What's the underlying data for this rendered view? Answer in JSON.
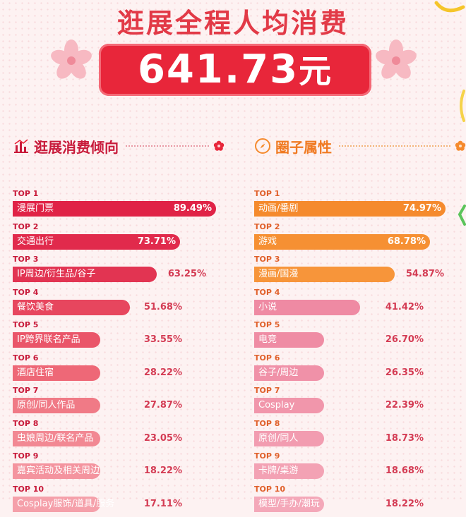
{
  "header": {
    "title": "逛展全程人均消费",
    "amount": "641.73",
    "unit": "元"
  },
  "chart_data": [
    {
      "type": "bar",
      "title": "逛展消费倾向",
      "categories": [
        "漫展门票",
        "交通出行",
        "IP周边/衍生品/谷子",
        "餐饮美食",
        "IP跨界联名产品",
        "酒店住宿",
        "原创/同人作品",
        "虫娘周边/联名产品",
        "嘉宾活动及相关周边",
        "Cosplay服饰/道具/服务"
      ],
      "values": [
        89.49,
        73.71,
        63.25,
        51.68,
        33.55,
        28.22,
        27.87,
        23.05,
        18.22,
        17.11
      ],
      "labels": [
        "89.49%",
        "73.71%",
        "63.25%",
        "51.68%",
        "33.55%",
        "28.22%",
        "27.87%",
        "23.05%",
        "18.22%",
        "17.11%"
      ],
      "ranks": [
        "TOP 1",
        "TOP 2",
        "TOP 3",
        "TOP 4",
        "TOP 5",
        "TOP 6",
        "TOP 7",
        "TOP 8",
        "TOP 9",
        "TOP 10"
      ],
      "unit": "%",
      "colors": [
        "#e02246",
        "#e12a4c",
        "#e23452",
        "#e7465e",
        "#ea5569",
        "#ee6877",
        "#f07a86",
        "#f28893",
        "#f4949f",
        "#f5a0aa"
      ]
    },
    {
      "type": "bar",
      "title": "圈子属性",
      "categories": [
        "动画/番剧",
        "游戏",
        "漫画/国漫",
        "小说",
        "电竞",
        "谷子/周边",
        "Cosplay",
        "原创/同人",
        "卡牌/桌游",
        "模型/手办/潮玩"
      ],
      "values": [
        74.97,
        68.78,
        54.87,
        41.42,
        26.7,
        26.35,
        22.39,
        18.73,
        18.68,
        18.22
      ],
      "labels": [
        "74.97%",
        "68.78%",
        "54.87%",
        "41.42%",
        "26.70%",
        "26.35%",
        "22.39%",
        "18.73%",
        "18.68%",
        "18.22%"
      ],
      "ranks": [
        "TOP 1",
        "TOP 2",
        "TOP 3",
        "TOP 4",
        "TOP 5",
        "TOP 6",
        "TOP 7",
        "TOP 8",
        "TOP 9",
        "TOP 10"
      ],
      "unit": "%",
      "colors": [
        "#f58a2d",
        "#f69033",
        "#f7953a",
        "#ef8aa3",
        "#ef8ca4",
        "#f091a8",
        "#f196ab",
        "#f29cb0",
        "#f3a2b4",
        "#f4a8b9"
      ]
    }
  ]
}
